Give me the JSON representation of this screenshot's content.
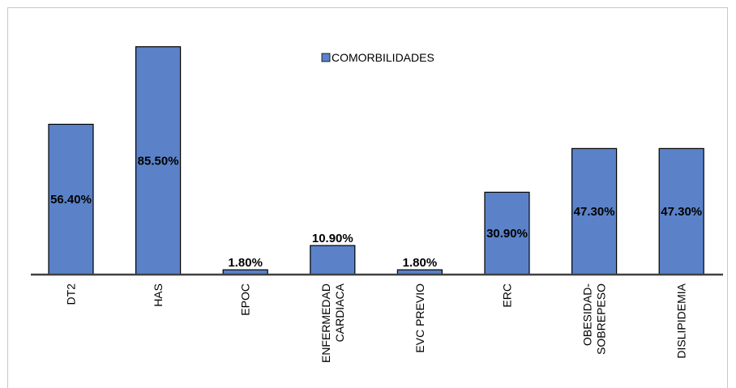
{
  "chart_data": {
    "type": "bar",
    "title": "",
    "xlabel": "",
    "ylabel": "",
    "legend": {
      "placement": "top-center"
    },
    "grid": false,
    "categories": [
      [
        "DT2"
      ],
      [
        "HAS"
      ],
      [
        "EPOC"
      ],
      [
        "ENFERMEDAD",
        "CARDIACA"
      ],
      [
        "EVC PREVIO"
      ],
      [
        "ERC"
      ],
      [
        "OBESIDAD-",
        "SOBREPESO"
      ],
      [
        "DISLIPIDEMIA"
      ]
    ],
    "series": [
      {
        "name": "COMORBILIDADES",
        "values": [
          56.4,
          85.5,
          1.8,
          10.9,
          1.8,
          30.9,
          47.3,
          47.3
        ],
        "labels": [
          "56.40%",
          "85.50%",
          "1.80%",
          "10.90%",
          "1.80%",
          "30.90%",
          "47.30%",
          "47.30%"
        ]
      }
    ],
    "ylim": [
      0,
      100
    ],
    "colors": {
      "bar": "#5b82c8",
      "axis": "#404040"
    }
  }
}
